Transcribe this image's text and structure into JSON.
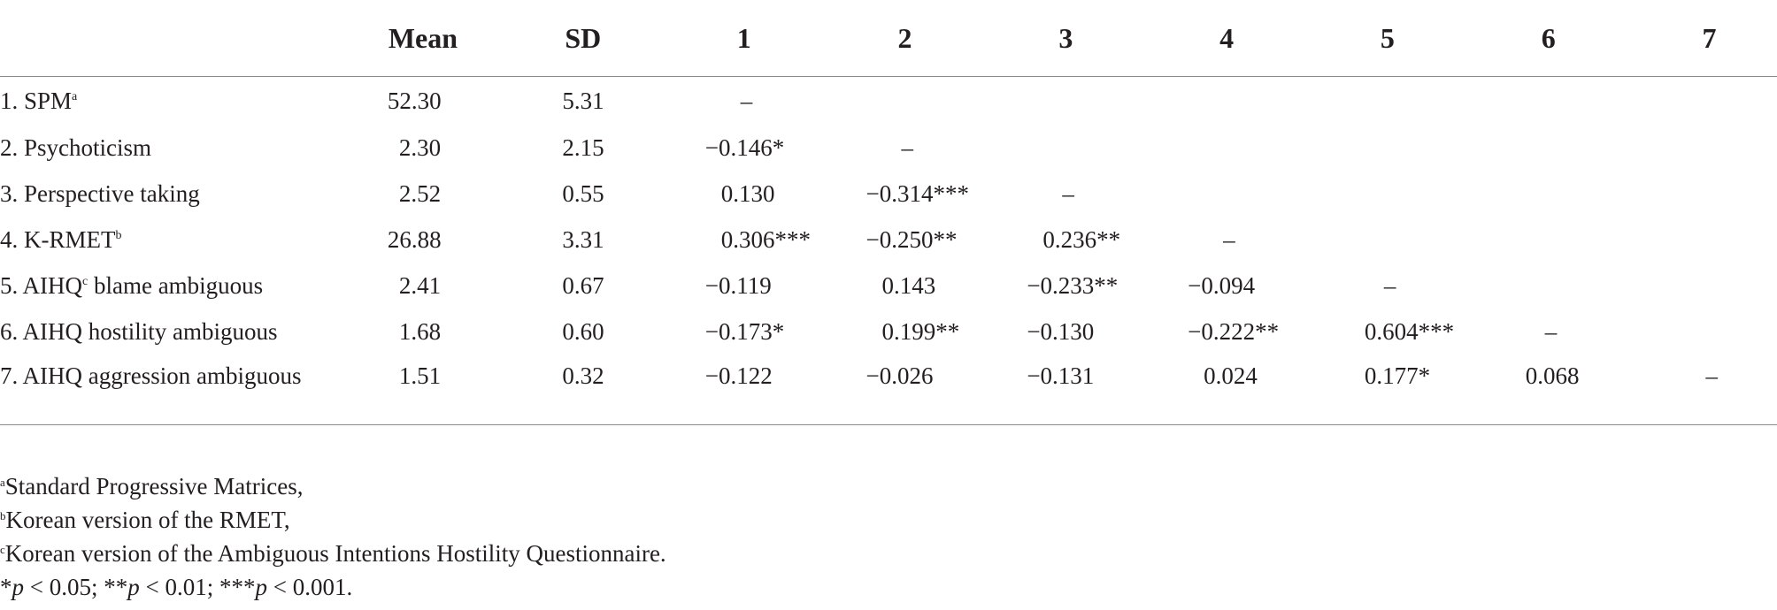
{
  "table": {
    "headers": [
      "",
      "Mean",
      "SD",
      "1",
      "2",
      "3",
      "4",
      "5",
      "6",
      "7"
    ],
    "rows": [
      {
        "label": "1. SPM",
        "sup": "a",
        "label_rest": "",
        "mean": "52.30",
        "sd": "5.31",
        "cells": [
          "–",
          "",
          "",
          "",
          "",
          "",
          ""
        ]
      },
      {
        "label": "2. Psychoticism",
        "sup": "",
        "label_rest": "",
        "mean": "2.30",
        "sd": "2.15",
        "cells": [
          "−0.146*",
          "–",
          "",
          "",
          "",
          "",
          ""
        ]
      },
      {
        "label": "3. Perspective taking",
        "sup": "",
        "label_rest": "",
        "mean": "2.52",
        "sd": "0.55",
        "cells": [
          "0.130",
          "−0.314***",
          "–",
          "",
          "",
          "",
          ""
        ]
      },
      {
        "label": "4. K-RMET",
        "sup": "b",
        "label_rest": "",
        "mean": "26.88",
        "sd": "3.31",
        "cells": [
          "0.306***",
          "−0.250**",
          "0.236**",
          "–",
          "",
          "",
          ""
        ]
      },
      {
        "label": "5. AIHQ",
        "sup": "c",
        "label_rest": " blame ambiguous",
        "mean": "2.41",
        "sd": "0.67",
        "cells": [
          "−0.119",
          "0.143",
          "−0.233**",
          "−0.094",
          "–",
          "",
          ""
        ]
      },
      {
        "label": "6. AIHQ hostility ambiguous",
        "sup": "",
        "label_rest": "",
        "mean": "1.68",
        "sd": "0.60",
        "cells": [
          "−0.173*",
          "0.199**",
          "−0.130",
          "−0.222**",
          "0.604***",
          "–",
          ""
        ]
      },
      {
        "label": "7. AIHQ aggression ambiguous",
        "sup": "",
        "label_rest": "",
        "mean": "1.51",
        "sd": "0.32",
        "cells": [
          "−0.122",
          "−0.026",
          "−0.131",
          "0.024",
          "0.177*",
          "0.068",
          "–"
        ]
      }
    ]
  },
  "footnotes": {
    "a": {
      "mark": "a",
      "text": "Standard Progressive Matrices,"
    },
    "b": {
      "mark": "b",
      "text": "Korean version of the RMET,"
    },
    "c": {
      "mark": "c",
      "text": "Korean version of the Ambiguous Intentions Hostility Questionnaire."
    },
    "sig": {
      "p1_stars": "*",
      "p1_var": "p",
      "p1_val": " < 0.05; ",
      "p2_stars": "**",
      "p2_var": "p",
      "p2_val": " < 0.01; ",
      "p3_stars": "***",
      "p3_var": "p",
      "p3_val": " < 0.001."
    }
  }
}
